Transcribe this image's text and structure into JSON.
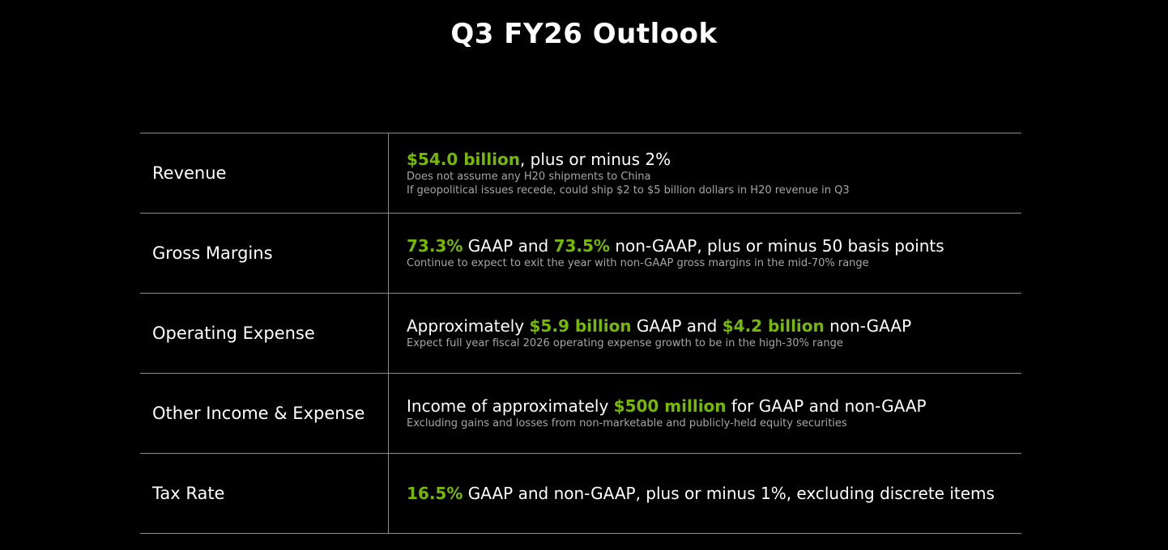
{
  "title": "Q3 FY26 Outlook",
  "accent_color": "#76b900",
  "rows": [
    {
      "label": "Revenue",
      "main": [
        {
          "text": "$54.0 billion",
          "highlight": true
        },
        {
          "text": ", plus or minus 2%",
          "highlight": false
        }
      ],
      "notes": [
        "Does not assume any H20 shipments to China",
        "If geopolitical issues recede, could ship $2 to $5 billion dollars in H20 revenue in Q3"
      ]
    },
    {
      "label": "Gross Margins",
      "main": [
        {
          "text": "73.3%",
          "highlight": true
        },
        {
          "text": " GAAP and ",
          "highlight": false
        },
        {
          "text": "73.5%",
          "highlight": true
        },
        {
          "text": " non-GAAP, plus or minus 50 basis points",
          "highlight": false
        }
      ],
      "notes": [
        "Continue to expect to exit the year with non-GAAP gross margins in the mid-70% range"
      ]
    },
    {
      "label": "Operating Expense",
      "main": [
        {
          "text": "Approximately ",
          "highlight": false
        },
        {
          "text": "$5.9 billion",
          "highlight": true
        },
        {
          "text": " GAAP and ",
          "highlight": false
        },
        {
          "text": "$4.2 billion",
          "highlight": true
        },
        {
          "text": " non-GAAP",
          "highlight": false
        }
      ],
      "notes": [
        "Expect full year fiscal 2026 operating expense growth to be in the high-30% range"
      ]
    },
    {
      "label": "Other Income & Expense",
      "main": [
        {
          "text": "Income of approximately ",
          "highlight": false
        },
        {
          "text": "$500 million",
          "highlight": true
        },
        {
          "text": " for GAAP and non-GAAP",
          "highlight": false
        }
      ],
      "notes": [
        "Excluding gains and losses from non-marketable and publicly-held equity securities"
      ]
    },
    {
      "label": "Tax Rate",
      "main": [
        {
          "text": "16.5%",
          "highlight": true
        },
        {
          "text": " GAAP and non-GAAP, plus or minus 1%, excluding discrete items",
          "highlight": false
        }
      ],
      "notes": []
    }
  ]
}
